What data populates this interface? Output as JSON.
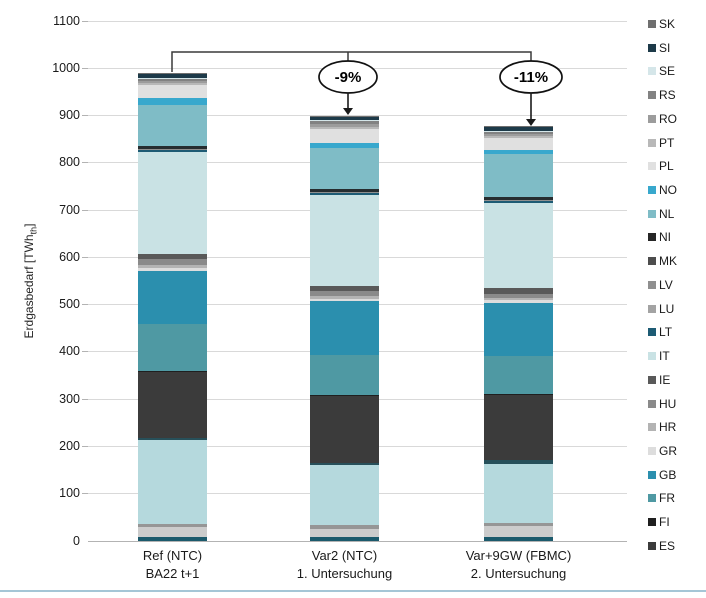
{
  "chart": {
    "y_title": {
      "pre": "Erdgasbedarf [TWh",
      "sub": "th",
      "post": "]"
    }
  },
  "chart_data": {
    "type": "bar",
    "stacked": true,
    "title": "",
    "ylabel": "Erdgasbedarf [TWh_th]",
    "ylim": [
      0,
      1100
    ],
    "ytick_step": 100,
    "grid": true,
    "legend_position": "right",
    "categories": [
      {
        "id": "ref-ntc",
        "line1": "Ref (NTC)",
        "line2": "BA22 t+1"
      },
      {
        "id": "var2-ntc",
        "line1": "Var2 (NTC)",
        "line2": "1. Untersuchung"
      },
      {
        "id": "var9gw-fbmc",
        "line1": "Var+9GW (FBMC)",
        "line2": "2. Untersuchung"
      }
    ],
    "totals": [
      990,
      900,
      878
    ],
    "annotations": [
      {
        "label": "-9%",
        "target": "Var2 (NTC)"
      },
      {
        "label": "-11%",
        "target": "Var+9GW (FBMC)"
      }
    ],
    "series_note": "segments listed bottom-to-top; 'other-*' segments have no visible legend entry (legend cropped)",
    "series": [
      {
        "code": "other-1",
        "color": "#1c5a6c",
        "values": [
          9,
          9,
          9
        ]
      },
      {
        "code": "other-2",
        "color": "#cccccc",
        "values": [
          21,
          16,
          22
        ]
      },
      {
        "code": "other-3",
        "color": "#969696",
        "values": [
          7,
          8,
          8
        ]
      },
      {
        "code": "other-4",
        "color": "#b5d9dd",
        "values": [
          176,
          127,
          124
        ]
      },
      {
        "code": "other-5",
        "color": "#27505a",
        "values": [
          6,
          6,
          8
        ]
      },
      {
        "code": "ES",
        "color": "#3b3b3b",
        "values": [
          138,
          140,
          138
        ]
      },
      {
        "code": "FI",
        "color": "#1f1f1f",
        "values": [
          2,
          2,
          2
        ]
      },
      {
        "code": "FR",
        "color": "#4f99a3",
        "values": [
          100,
          86,
          81
        ]
      },
      {
        "code": "GB",
        "color": "#2b8fae",
        "values": [
          113,
          114,
          112
        ]
      },
      {
        "code": "GR",
        "color": "#dddddd",
        "values": [
          6,
          5,
          5
        ]
      },
      {
        "code": "HR",
        "color": "#b3b3b3",
        "values": [
          5,
          5,
          5
        ]
      },
      {
        "code": "HU",
        "color": "#8a8a8a",
        "values": [
          13,
          10,
          9
        ]
      },
      {
        "code": "IE",
        "color": "#595959",
        "values": [
          12,
          12,
          12
        ]
      },
      {
        "code": "IT",
        "color": "#c9e2e4",
        "values": [
          215,
          192,
          180
        ]
      },
      {
        "code": "LT",
        "color": "#1d5b74",
        "values": [
          4,
          4,
          4
        ]
      },
      {
        "code": "LU",
        "color": "#a3a3a3",
        "values": [
          1,
          1,
          1
        ]
      },
      {
        "code": "LV",
        "color": "#8f8f8f",
        "values": [
          1,
          1,
          1
        ]
      },
      {
        "code": "MK",
        "color": "#4d4d4d",
        "values": [
          1,
          1,
          1
        ]
      },
      {
        "code": "NI",
        "color": "#262d30",
        "values": [
          6,
          5,
          6
        ]
      },
      {
        "code": "NL",
        "color": "#7fbcc6",
        "values": [
          87,
          88,
          90
        ]
      },
      {
        "code": "NO",
        "color": "#38a8cd",
        "values": [
          15,
          10,
          10
        ]
      },
      {
        "code": "PL",
        "color": "#e0e0e0",
        "values": [
          27,
          30,
          25
        ]
      },
      {
        "code": "PT",
        "color": "#b8b8b8",
        "values": [
          4,
          5,
          4
        ]
      },
      {
        "code": "RO",
        "color": "#9c9c9c",
        "values": [
          5,
          6,
          5
        ]
      },
      {
        "code": "RS",
        "color": "#828282",
        "values": [
          4,
          5,
          4
        ]
      },
      {
        "code": "SE",
        "color": "#d5e6e9",
        "values": [
          2,
          2,
          2
        ]
      },
      {
        "code": "SI",
        "color": "#1d3a49",
        "values": [
          8,
          8,
          8
        ]
      },
      {
        "code": "SK",
        "color": "#6f6f6f",
        "values": [
          2,
          2,
          2
        ]
      }
    ],
    "legend": [
      {
        "code": "SK",
        "color": "#6f6f6f"
      },
      {
        "code": "SI",
        "color": "#1d3a49"
      },
      {
        "code": "SE",
        "color": "#d5e6e9"
      },
      {
        "code": "RS",
        "color": "#828282"
      },
      {
        "code": "RO",
        "color": "#9c9c9c"
      },
      {
        "code": "PT",
        "color": "#b8b8b8"
      },
      {
        "code": "PL",
        "color": "#e0e0e0"
      },
      {
        "code": "NO",
        "color": "#38a8cd"
      },
      {
        "code": "NL",
        "color": "#7fbcc6"
      },
      {
        "code": "NI",
        "color": "#262626"
      },
      {
        "code": "MK",
        "color": "#4d4d4d"
      },
      {
        "code": "LV",
        "color": "#8f8f8f"
      },
      {
        "code": "LU",
        "color": "#a3a3a3"
      },
      {
        "code": "LT",
        "color": "#1d5b74"
      },
      {
        "code": "IT",
        "color": "#c9e2e4"
      },
      {
        "code": "IE",
        "color": "#595959"
      },
      {
        "code": "HU",
        "color": "#8a8a8a"
      },
      {
        "code": "HR",
        "color": "#b3b3b3"
      },
      {
        "code": "GR",
        "color": "#dddddd"
      },
      {
        "code": "GB",
        "color": "#2b8fae"
      },
      {
        "code": "FR",
        "color": "#4f99a3"
      },
      {
        "code": "FI",
        "color": "#1f1f1f"
      },
      {
        "code": "ES",
        "color": "#3b3b3b"
      }
    ]
  }
}
